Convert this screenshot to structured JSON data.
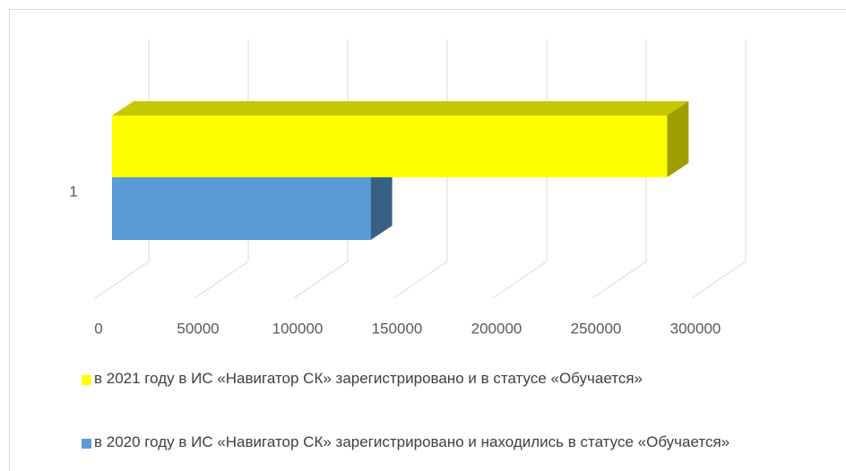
{
  "chart_data": {
    "type": "bar3d_horizontal",
    "categories": [
      "1"
    ],
    "series": [
      {
        "name": "в 2021 году в ИС «Навигатор СК» зарегистрировано и в статусе «Обучается»",
        "color": "#ffff00",
        "values": [
          279000
        ]
      },
      {
        "name": "в 2020 году в ИС «Навигатор СК» зарегистрировано и находились в статусе «Обучается»",
        "color": "#5b9bd5",
        "values": [
          130000
        ]
      }
    ],
    "xlim": [
      0,
      300000
    ],
    "xticks": [
      0,
      50000,
      100000,
      150000,
      200000,
      250000,
      300000
    ],
    "grid": true,
    "legend": "bottom"
  }
}
